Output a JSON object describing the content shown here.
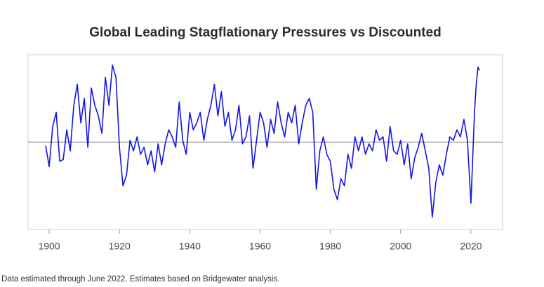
{
  "chart_data": {
    "type": "line",
    "title": "Global Leading Stagflationary Pressures vs Discounted",
    "footnote": "Data estimated through June 2022. Estimates based on Bridgewater analysis.",
    "x": [
      1899,
      1900,
      1901,
      1902,
      1903,
      1904,
      1905,
      1906,
      1907,
      1908,
      1909,
      1910,
      1911,
      1912,
      1913,
      1914,
      1915,
      1916,
      1917,
      1918,
      1919,
      1920,
      1921,
      1922,
      1923,
      1924,
      1925,
      1926,
      1927,
      1928,
      1929,
      1930,
      1931,
      1932,
      1933,
      1934,
      1935,
      1936,
      1937,
      1938,
      1939,
      1940,
      1941,
      1942,
      1943,
      1944,
      1945,
      1946,
      1947,
      1948,
      1949,
      1950,
      1951,
      1952,
      1953,
      1954,
      1955,
      1956,
      1957,
      1958,
      1959,
      1960,
      1961,
      1962,
      1963,
      1964,
      1965,
      1966,
      1967,
      1968,
      1969,
      1970,
      1971,
      1972,
      1973,
      1974,
      1975,
      1976,
      1977,
      1978,
      1979,
      1980,
      1981,
      1982,
      1983,
      1984,
      1985,
      1986,
      1987,
      1988,
      1989,
      1990,
      1991,
      1992,
      1993,
      1994,
      1995,
      1996,
      1997,
      1998,
      1999,
      2000,
      2001,
      2002,
      2003,
      2004,
      2005,
      2006,
      2007,
      2008,
      2009,
      2010,
      2011,
      2012,
      2013,
      2014,
      2015,
      2016,
      2017,
      2018,
      2019,
      2020,
      2020.5,
      2021,
      2021.5,
      2022,
      2022.4
    ],
    "values": [
      -0.1,
      -0.7,
      0.45,
      0.85,
      -0.55,
      -0.5,
      0.35,
      -0.25,
      1.05,
      1.65,
      0.55,
      1.25,
      -0.15,
      1.55,
      1.05,
      0.75,
      0.25,
      1.85,
      1.05,
      2.2,
      1.85,
      -0.15,
      -1.25,
      -0.95,
      0.05,
      -0.25,
      0.15,
      -0.35,
      -0.15,
      -0.65,
      -0.25,
      -0.85,
      -0.05,
      -0.65,
      -0.05,
      0.35,
      0.15,
      -0.15,
      1.15,
      0.05,
      -0.35,
      0.85,
      0.35,
      0.55,
      0.85,
      0.05,
      0.65,
      1.05,
      1.65,
      0.75,
      1.45,
      0.45,
      0.85,
      0.05,
      0.35,
      1.05,
      -0.05,
      0.15,
      0.75,
      -0.75,
      0.05,
      0.85,
      0.55,
      -0.15,
      0.65,
      0.25,
      1.15,
      0.55,
      0.15,
      0.85,
      0.55,
      1.05,
      -0.05,
      0.55,
      1.05,
      1.25,
      0.85,
      -1.35,
      -0.25,
      0.15,
      -0.35,
      -0.55,
      -1.35,
      -1.65,
      -1.05,
      -1.25,
      -0.35,
      -0.75,
      0.15,
      -0.25,
      0.15,
      -0.35,
      -0.05,
      -0.25,
      0.35,
      0.05,
      0.15,
      -0.55,
      0.45,
      -0.25,
      -0.35,
      0.05,
      -0.65,
      -0.05,
      -1.05,
      -0.45,
      -0.15,
      0.25,
      -0.25,
      -0.75,
      -2.15,
      -1.15,
      -0.65,
      -0.95,
      -0.35,
      0.15,
      0.05,
      0.35,
      0.15,
      0.65,
      0.05,
      -1.75,
      -0.45,
      0.85,
      1.65,
      2.15,
      2.05
    ],
    "color": "#1414e6",
    "xlim": [
      1894,
      2029
    ],
    "xticks": [
      1900,
      1920,
      1940,
      1960,
      1980,
      2000,
      2020
    ],
    "ylim": [
      -2.5,
      2.5
    ],
    "hline": 0
  }
}
